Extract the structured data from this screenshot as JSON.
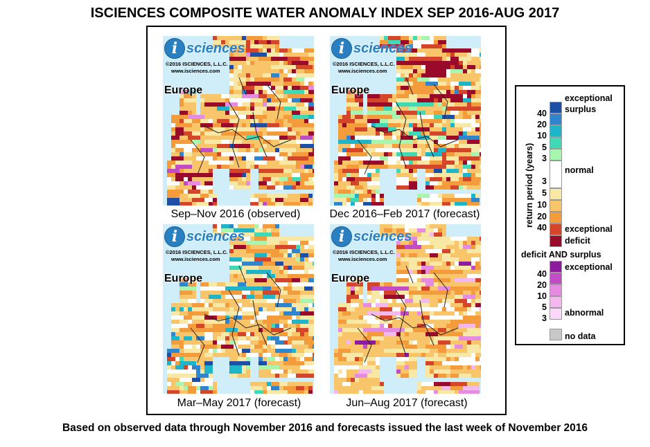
{
  "title": "ISCIENCES COMPOSITE WATER ANOMALY INDEX SEP 2016-AUG 2017",
  "footer": "Based on observed data through November 2016 and forecasts issued the last week of November 2016",
  "logo": {
    "letter": "i",
    "word": "sciences",
    "copyright": "©2016  ISCIENCES, L.L.C.",
    "url": "www.isciences.com"
  },
  "panels": [
    {
      "region": "Europe",
      "caption": "Sep–Nov 2016 (observed)"
    },
    {
      "region": "Europe",
      "caption": "Dec 2016–Feb 2017 (forecast)"
    },
    {
      "region": "Europe",
      "caption": "Mar–May 2017 (forecast)"
    },
    {
      "region": "Europe",
      "caption": "Jun–Aug 2017 (forecast)"
    }
  ],
  "legend": {
    "axis_label": "return period (years)",
    "exceptional_surplus": [
      "exceptional",
      "surplus"
    ],
    "normal": "normal",
    "exceptional_deficit": [
      "exceptional",
      "deficit"
    ],
    "combined_title": "deficit AND surplus",
    "combined_exceptional": "exceptional",
    "combined_abnormal": "abnormal",
    "no_data": "no data",
    "surplus_ticks": [
      "40",
      "20",
      "10",
      "5",
      "3"
    ],
    "deficit_ticks": [
      "3",
      "5",
      "10",
      "20",
      "40"
    ],
    "combined_ticks": [
      "40",
      "20",
      "10",
      "5",
      "3"
    ],
    "colors": {
      "surplus": [
        "#1d4fa6",
        "#2f86cf",
        "#1fb5c9",
        "#3fd9b5",
        "#a8f5b0"
      ],
      "normal": "#ffffff",
      "deficit": [
        "#f7e8a6",
        "#f9c56b",
        "#f49b3c",
        "#d4452a",
        "#9a0a2a"
      ],
      "combined": [
        "#8e1a9e",
        "#c24bc6",
        "#e58ce0",
        "#f3b8ee",
        "#fbd9f8"
      ],
      "no_data": "#c8c8c8",
      "water": "#cfeefa"
    }
  }
}
